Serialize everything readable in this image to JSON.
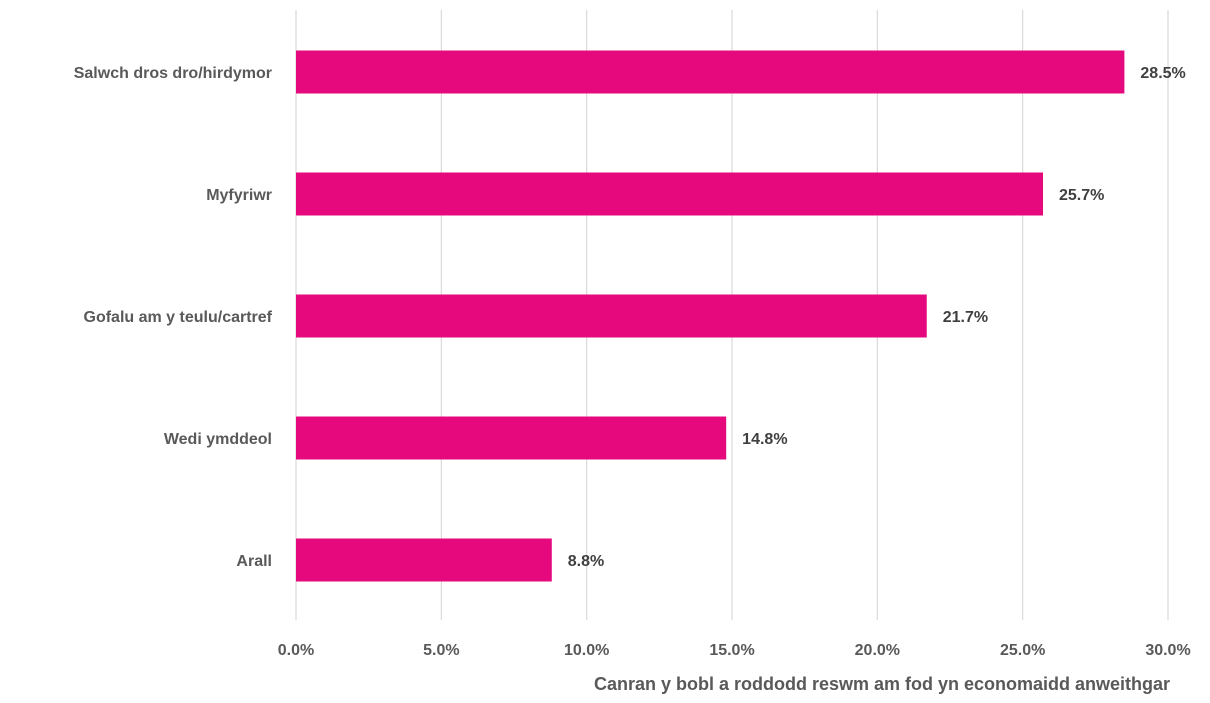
{
  "chart_data": {
    "type": "bar",
    "orientation": "horizontal",
    "title": "",
    "xlabel": "Canran y bobl a roddodd reswm am fod yn economaidd anweithgar",
    "ylabel": "",
    "categories": [
      "Salwch dros dro/hirdymor",
      "Myfyriwr",
      "Gofalu am y teulu/cartref",
      "Wedi ymddeol",
      "Arall"
    ],
    "values": [
      28.5,
      25.7,
      21.7,
      14.8,
      8.8
    ],
    "value_labels": [
      "28.5%",
      "25.7%",
      "21.7%",
      "14.8%",
      "8.8%"
    ],
    "xlim": [
      0,
      30
    ],
    "ticks": [
      0,
      5,
      10,
      15,
      20,
      25,
      30
    ],
    "tick_labels": [
      "0.0%",
      "5.0%",
      "10.0%",
      "15.0%",
      "20.0%",
      "25.0%",
      "30.0%"
    ],
    "grid": "vertical",
    "legend": "none",
    "bar_color": "#E6097E",
    "grid_color": "#D9D9D9",
    "text_color": "#595959"
  }
}
